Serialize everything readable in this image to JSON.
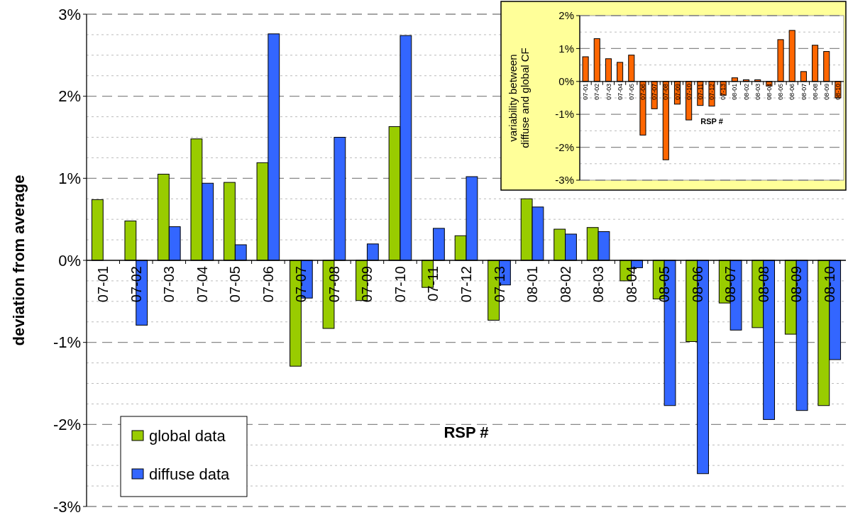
{
  "chart_data": [
    {
      "type": "bar",
      "xlabel": "RSP #",
      "ylabel": "deviation from average",
      "categories": [
        "07-01",
        "07-02",
        "07-03",
        "07-04",
        "07-05",
        "07-06",
        "07-07",
        "07-08",
        "07-09",
        "07-10",
        "07-11",
        "07-12",
        "07-13",
        "08-01",
        "08-02",
        "08-03",
        "08-04",
        "08-05",
        "08-06",
        "08-07",
        "08-08",
        "08-09",
        "08-10"
      ],
      "series": [
        {
          "name": "global data",
          "color": "#99cc00",
          "values": [
            0.74,
            0.48,
            1.05,
            1.48,
            0.95,
            1.19,
            -1.29,
            -0.83,
            -0.49,
            1.63,
            -0.33,
            0.3,
            -0.73,
            0.75,
            0.38,
            0.4,
            -0.25,
            -0.47,
            -0.99,
            -0.52,
            -0.82,
            -0.9,
            -1.77
          ]
        },
        {
          "name": "diffuse data",
          "color": "#3366ff",
          "values": [
            null,
            -0.79,
            0.41,
            0.94,
            0.19,
            2.76,
            -0.46,
            1.5,
            0.2,
            2.74,
            0.39,
            1.02,
            -0.3,
            0.65,
            0.32,
            0.35,
            -0.09,
            -1.77,
            -2.6,
            -0.85,
            -1.94,
            -1.83,
            -1.21
          ]
        }
      ],
      "ylim": [
        -3,
        3
      ],
      "yticks": [
        {
          "value": -3,
          "label": "-3%"
        },
        {
          "value": -2.75,
          "label": null
        },
        {
          "value": -2.5,
          "label": null
        },
        {
          "value": -2.25,
          "label": null
        },
        {
          "value": -2,
          "label": "-2%"
        },
        {
          "value": -1.75,
          "label": null
        },
        {
          "value": -1.5,
          "label": null
        },
        {
          "value": -1.25,
          "label": null
        },
        {
          "value": -1,
          "label": "-1%"
        },
        {
          "value": -0.75,
          "label": null
        },
        {
          "value": -0.5,
          "label": null
        },
        {
          "value": -0.25,
          "label": null
        },
        {
          "value": 0,
          "label": "0%"
        },
        {
          "value": 0.25,
          "label": null
        },
        {
          "value": 0.5,
          "label": null
        },
        {
          "value": 0.75,
          "label": null
        },
        {
          "value": 1,
          "label": "1%"
        },
        {
          "value": 1.25,
          "label": null
        },
        {
          "value": 1.5,
          "label": null
        },
        {
          "value": 1.75,
          "label": null
        },
        {
          "value": 2,
          "label": "2%"
        },
        {
          "value": 2.25,
          "label": null
        },
        {
          "value": 2.5,
          "label": null
        },
        {
          "value": 2.75,
          "label": null
        },
        {
          "value": 3,
          "label": "3%"
        }
      ],
      "grid": "y",
      "legend": "bottom left"
    },
    {
      "type": "bar",
      "xlabel": "RSP #",
      "ylabel": "variability between diffuse and global CF",
      "categories": [
        "07-01",
        "07-02",
        "07-03",
        "07-04",
        "07-05",
        "07-06",
        "07-07",
        "07-08",
        "07-09",
        "07-10",
        "07-11",
        "07-12",
        "07-13",
        "08-01",
        "08-02",
        "08-03",
        "08-04",
        "08-05",
        "08-06",
        "08-07",
        "08-08",
        "08-09",
        "08-10"
      ],
      "series": [
        {
          "color": "#ff6600",
          "values": [
            0.75,
            1.3,
            0.69,
            0.58,
            0.8,
            -1.63,
            -0.83,
            -2.38,
            -0.69,
            -1.17,
            -0.73,
            -0.75,
            -0.42,
            0.11,
            0.05,
            0.05,
            -0.14,
            1.27,
            1.55,
            0.3,
            1.1,
            0.91,
            -0.5
          ]
        }
      ],
      "ylim": [
        -3,
        2
      ],
      "yticks": [
        {
          "value": -3,
          "label": "-3%"
        },
        {
          "value": -2.5,
          "label": null
        },
        {
          "value": -2,
          "label": "-2%"
        },
        {
          "value": -1.5,
          "label": null
        },
        {
          "value": -1,
          "label": "-1%"
        },
        {
          "value": -0.5,
          "label": null
        },
        {
          "value": 0,
          "label": "0%"
        },
        {
          "value": 0.5,
          "label": null
        },
        {
          "value": 1,
          "label": "1%"
        },
        {
          "value": 1.5,
          "label": null
        },
        {
          "value": 2,
          "label": "2%"
        }
      ],
      "grid": "y"
    }
  ]
}
